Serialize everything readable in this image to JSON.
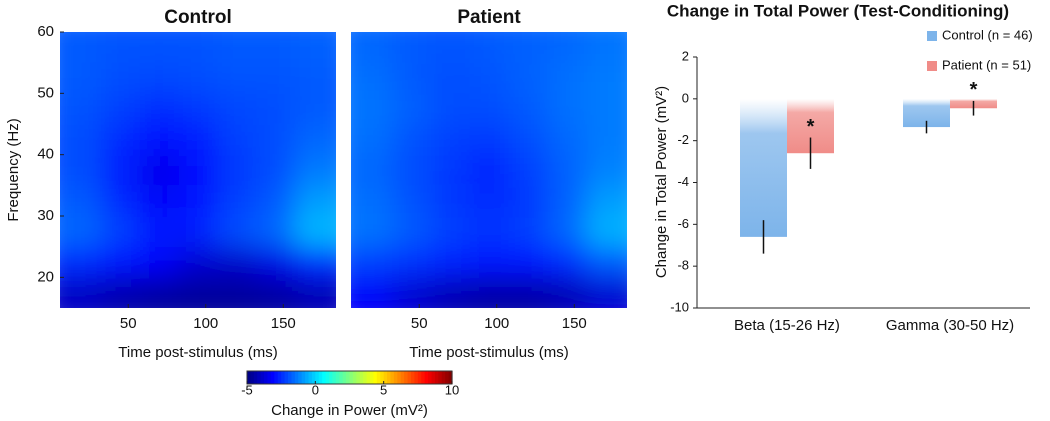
{
  "chart_data": [
    {
      "type": "heatmap",
      "title": "Control",
      "x_label": "Time post-stimulus (ms)",
      "y_label": "Frequency (Hz)",
      "xlim": [
        6,
        184
      ],
      "xticks": [
        50,
        100,
        150
      ],
      "ylim": [
        15,
        60
      ],
      "yticks": [
        20,
        30,
        40,
        50,
        60
      ],
      "x": [
        20,
        45,
        70,
        95,
        120,
        145,
        170
      ],
      "y": [
        17.5,
        22.5,
        27.5,
        32.5,
        37.5,
        42.5,
        47.5,
        52.5,
        57.5
      ],
      "values": [
        [
          -4.0,
          -4.3,
          -4.5,
          -4.6,
          -4.6,
          -4.5,
          -4.2
        ],
        [
          -2.5,
          -2.8,
          -3.2,
          -3.8,
          -3.9,
          -3.5,
          -2.5
        ],
        [
          -1.6,
          -2.2,
          -2.8,
          -2.6,
          -2.0,
          -1.6,
          -0.4
        ],
        [
          -1.8,
          -2.5,
          -3.2,
          -2.8,
          -2.2,
          -1.8,
          -0.8
        ],
        [
          -2.0,
          -2.7,
          -3.4,
          -3.0,
          -2.3,
          -2.0,
          -1.3
        ],
        [
          -2.0,
          -2.5,
          -3.0,
          -2.7,
          -2.2,
          -2.0,
          -1.6
        ],
        [
          -1.9,
          -2.2,
          -2.5,
          -2.3,
          -2.1,
          -2.0,
          -1.8
        ],
        [
          -1.8,
          -2.0,
          -2.1,
          -2.0,
          -1.9,
          -1.9,
          -1.8
        ],
        [
          -1.8,
          -1.9,
          -1.9,
          -1.9,
          -1.8,
          -1.8,
          -1.7
        ]
      ]
    },
    {
      "type": "heatmap",
      "title": "Patient",
      "x_label": "Time post-stimulus (ms)",
      "xlim": [
        6,
        184
      ],
      "xticks": [
        50,
        100,
        150
      ],
      "ylim": [
        15,
        60
      ],
      "x": [
        20,
        45,
        70,
        95,
        120,
        145,
        170
      ],
      "y": [
        17.5,
        22.5,
        27.5,
        32.5,
        37.5,
        42.5,
        47.5,
        52.5,
        57.5
      ],
      "values": [
        [
          -3.2,
          -3.8,
          -4.2,
          -4.4,
          -4.4,
          -4.2,
          -3.8
        ],
        [
          -2.2,
          -2.4,
          -2.6,
          -2.8,
          -2.8,
          -2.5,
          -1.8
        ],
        [
          -1.4,
          -1.8,
          -2.2,
          -2.4,
          -2.2,
          -1.6,
          -0.5
        ],
        [
          -1.5,
          -1.9,
          -2.3,
          -2.5,
          -2.3,
          -1.7,
          -0.8
        ],
        [
          -1.6,
          -2.0,
          -2.3,
          -2.6,
          -2.2,
          -1.7,
          -1.2
        ],
        [
          -1.5,
          -1.9,
          -2.2,
          -2.3,
          -2.0,
          -1.6,
          -1.3
        ],
        [
          -1.4,
          -1.7,
          -2.0,
          -2.0,
          -1.8,
          -1.5,
          -1.3
        ],
        [
          -1.5,
          -1.8,
          -2.0,
          -1.9,
          -1.7,
          -1.5,
          -1.3
        ],
        [
          -1.6,
          -1.8,
          -1.9,
          -1.8,
          -1.7,
          -1.6,
          -1.4
        ]
      ]
    },
    {
      "type": "bar",
      "title": "Change in Total Power (Test-Conditioning)",
      "y_label": "Change in Total Power (mV²)",
      "categories": [
        "Beta (15-26 Hz)",
        "Gamma (30-50 Hz)"
      ],
      "ylim": [
        -10,
        2
      ],
      "yticks": [
        -10,
        -8,
        -6,
        -4,
        -2,
        0,
        2
      ],
      "series": [
        {
          "name": "Control (n = 46)",
          "color": "#7db4ea",
          "values": [
            -6.6,
            -1.35
          ],
          "errors": [
            0.8,
            0.3
          ]
        },
        {
          "name": "Patient (n = 51)",
          "color": "#f08c88",
          "values": [
            -2.6,
            -0.45
          ],
          "errors": [
            0.75,
            0.35
          ],
          "significance": [
            "*",
            "*"
          ]
        }
      ]
    }
  ],
  "colorbar": {
    "label": "Change in Power (mV²)",
    "lim": [
      -5,
      10
    ],
    "ticks": [
      -5,
      0,
      5,
      10
    ],
    "colormap": "jet"
  }
}
